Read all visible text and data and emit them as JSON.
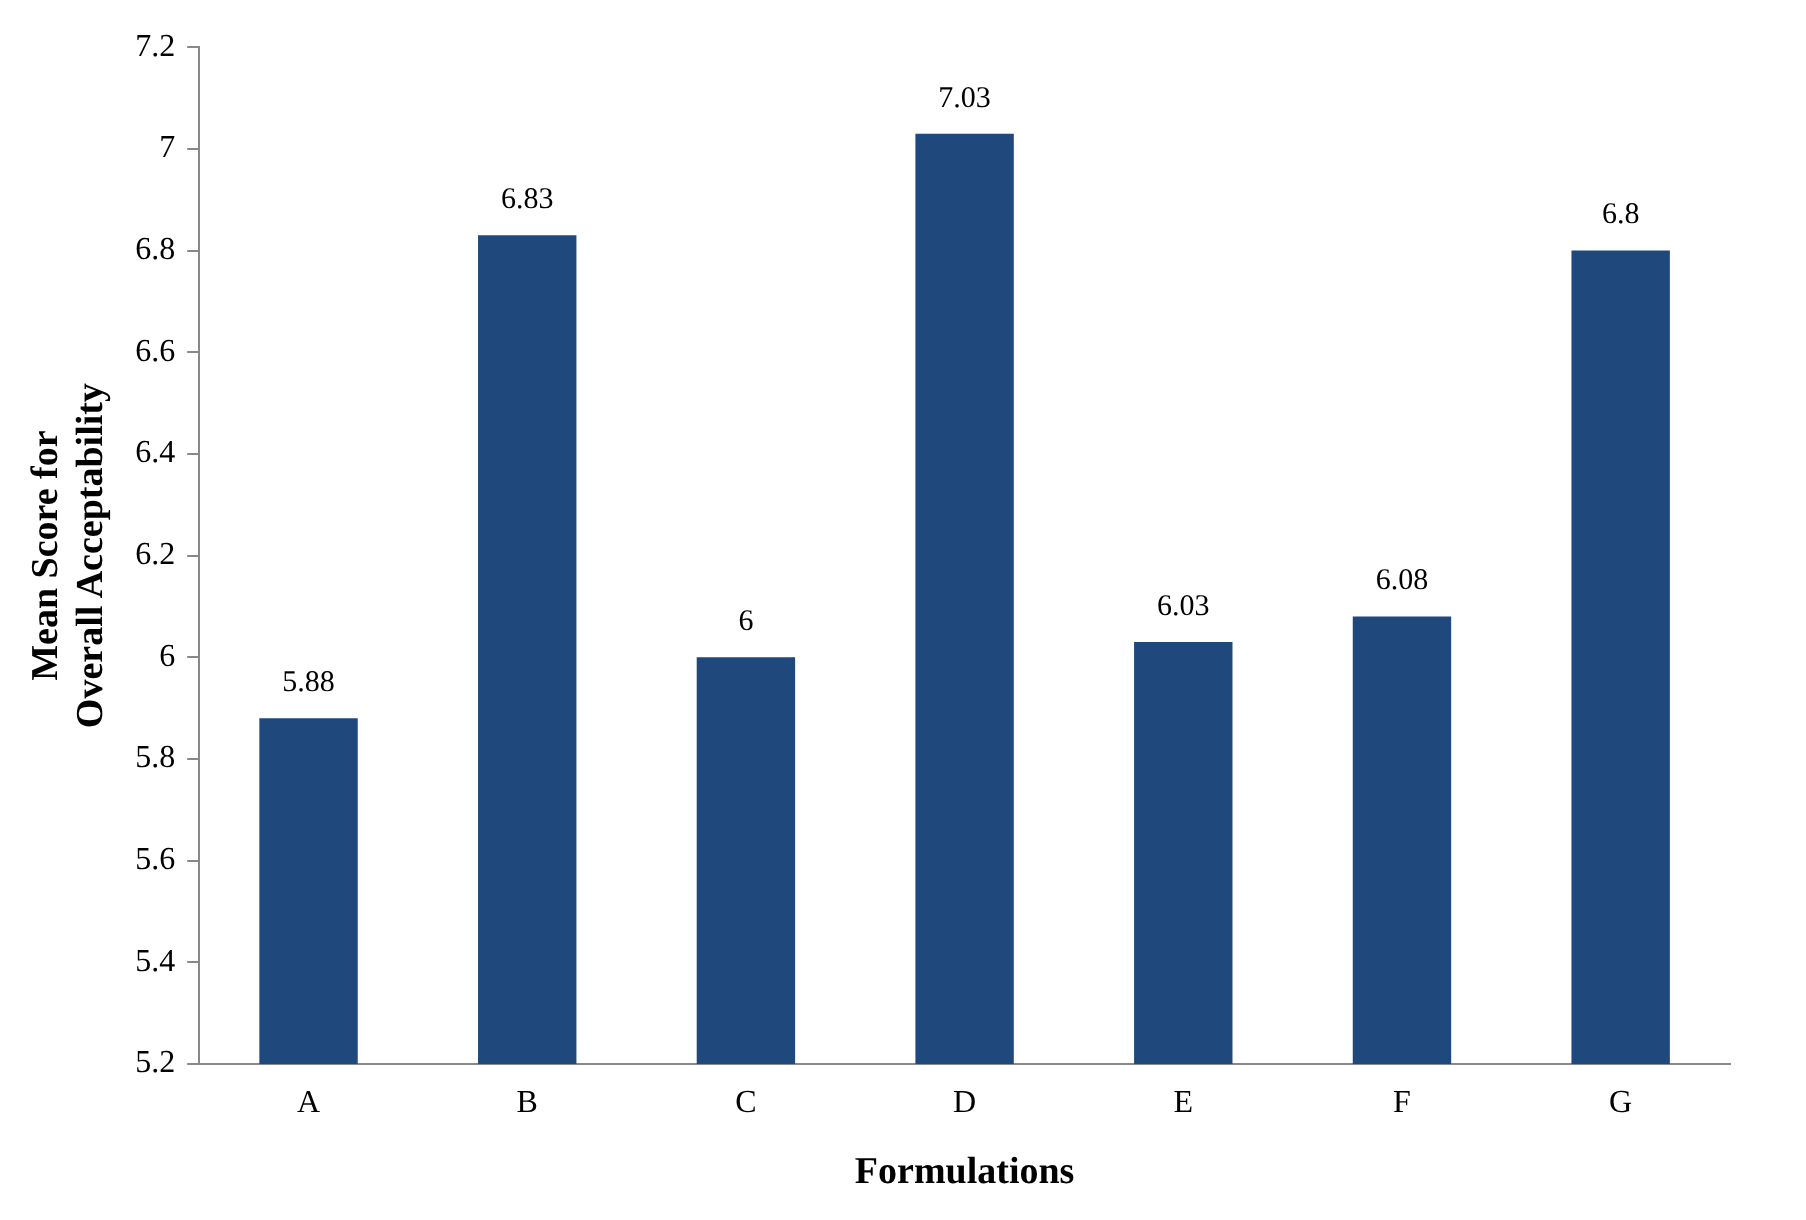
{
  "chart_data": {
    "type": "bar",
    "xlabel": "Formulations",
    "ylabel": "Mean Score for\nOverall Acceptability",
    "categories": [
      "A",
      "B",
      "C",
      "D",
      "E",
      "F",
      "G"
    ],
    "values": [
      5.88,
      6.83,
      6,
      7.03,
      6.03,
      6.08,
      6.8
    ],
    "color": "#1f497d",
    "ylim": [
      5.2,
      7.2
    ],
    "yticks": [
      5.2,
      5.4,
      5.6,
      5.8,
      6,
      6.2,
      6.4,
      6.6,
      6.8,
      7,
      7.2
    ],
    "grid": false,
    "legend": false,
    "data_labels": true
  }
}
